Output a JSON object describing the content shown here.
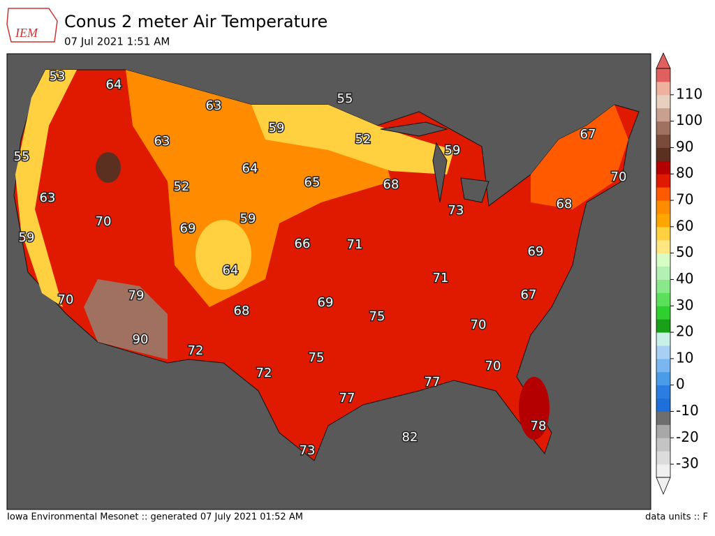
{
  "header": {
    "logo": "IEM",
    "title": "Conus 2 meter Air Temperature",
    "subtitle": "07 Jul 2021 1:51 AM"
  },
  "map": {
    "labels": [
      53,
      64,
      63,
      59,
      55,
      52,
      59,
      67,
      70,
      68,
      63,
      64,
      65,
      68,
      73,
      55,
      52,
      63,
      70,
      69,
      59,
      66,
      71,
      69,
      59,
      64,
      71,
      67,
      79,
      70,
      69,
      68,
      75,
      70,
      90,
      72,
      75,
      70,
      72,
      77,
      77,
      78,
      82,
      73
    ]
  },
  "colorbar": {
    "lim": [
      -35,
      120
    ],
    "ticks": [
      -30,
      -20,
      -10,
      0,
      10,
      20,
      30,
      40,
      50,
      60,
      70,
      80,
      90,
      100,
      110
    ],
    "colors": [
      "#f0f0f0",
      "#dcdcdc",
      "#c4c4c4",
      "#a8a8a8",
      "#6e6e6e",
      "#1e6fd9",
      "#2b7de0",
      "#4a9be8",
      "#7ab6f0",
      "#a8d0f5",
      "#c9f0e8",
      "#19a019",
      "#2fcf2f",
      "#5ae05a",
      "#8ae88a",
      "#b3f0b3",
      "#d7fcc4",
      "#ffe680",
      "#ffd040",
      "#ffa500",
      "#ff8c00",
      "#ff5a00",
      "#e01a00",
      "#b40000",
      "#5c3020",
      "#7a4a3a",
      "#a07060",
      "#c8a090",
      "#e8d0c0",
      "#f0b0a0",
      "#e06060"
    ]
  },
  "footer": {
    "left": "Iowa Environmental Mesonet :: generated 07 July 2021 01:52 AM",
    "right": "data units :: F"
  }
}
